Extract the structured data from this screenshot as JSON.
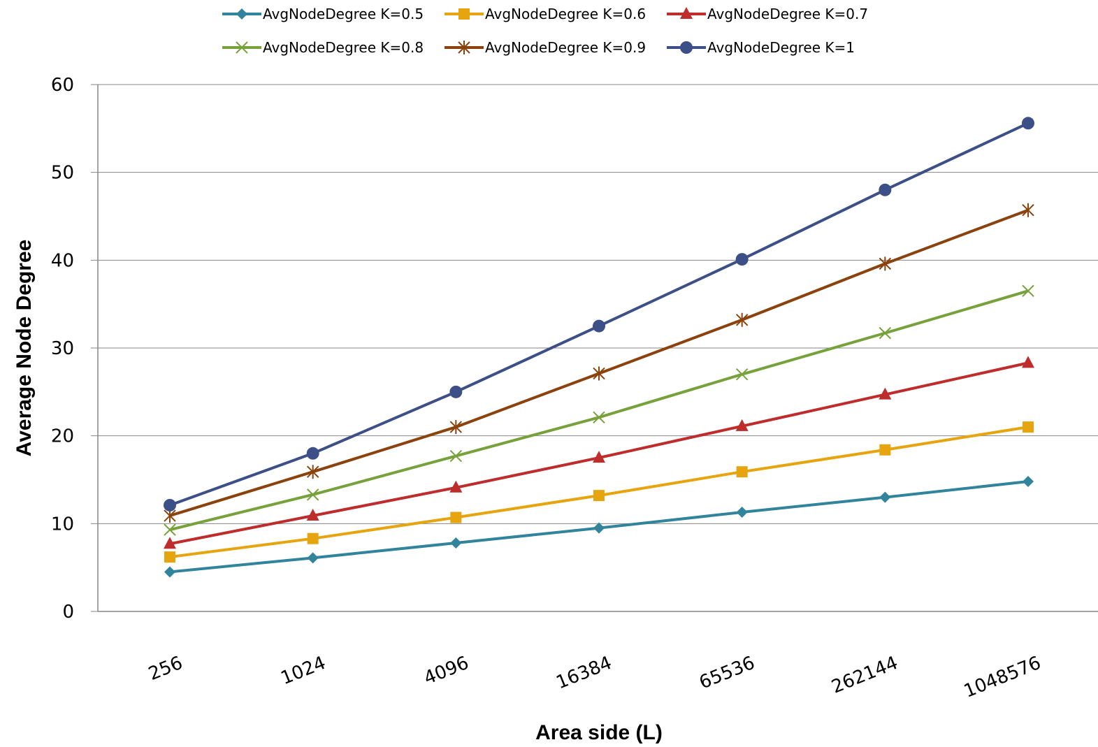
{
  "chart_data": {
    "type": "line",
    "title": "",
    "xlabel": "Area side (L)",
    "ylabel": "Average Node Degree",
    "categories": [
      "256",
      "1024",
      "4096",
      "16384",
      "65536",
      "262144",
      "1048576"
    ],
    "ylim": [
      0,
      60
    ],
    "yticks": [
      0,
      10,
      20,
      30,
      40,
      50,
      60
    ],
    "grid": true,
    "legend_position": "top",
    "series": [
      {
        "name": "AvgNodeDegree K=0.5",
        "color": "#31849b",
        "marker": "diamond",
        "values": [
          4.5,
          6.1,
          7.8,
          9.5,
          11.3,
          13.0,
          14.8
        ]
      },
      {
        "name": "AvgNodeDegree K=0.6",
        "color": "#e6a50e",
        "marker": "square",
        "values": [
          6.2,
          8.3,
          10.7,
          13.2,
          15.9,
          18.4,
          21.0
        ]
      },
      {
        "name": "AvgNodeDegree K=0.7",
        "color": "#be2c2c",
        "marker": "triangle",
        "values": [
          7.7,
          10.9,
          14.1,
          17.5,
          21.1,
          24.7,
          28.3
        ]
      },
      {
        "name": "AvgNodeDegree K=0.8",
        "color": "#77a23b",
        "marker": "x",
        "values": [
          9.3,
          13.3,
          17.7,
          22.1,
          27.0,
          31.7,
          36.5
        ]
      },
      {
        "name": "AvgNodeDegree K=0.9",
        "color": "#8b420c",
        "marker": "star",
        "values": [
          10.9,
          15.9,
          21.0,
          27.1,
          33.2,
          39.6,
          45.7
        ]
      },
      {
        "name": "AvgNodeDegree K=1",
        "color": "#3d4f87",
        "marker": "circle",
        "values": [
          12.1,
          18.0,
          25.0,
          32.5,
          40.1,
          48.0,
          55.6
        ]
      }
    ]
  }
}
